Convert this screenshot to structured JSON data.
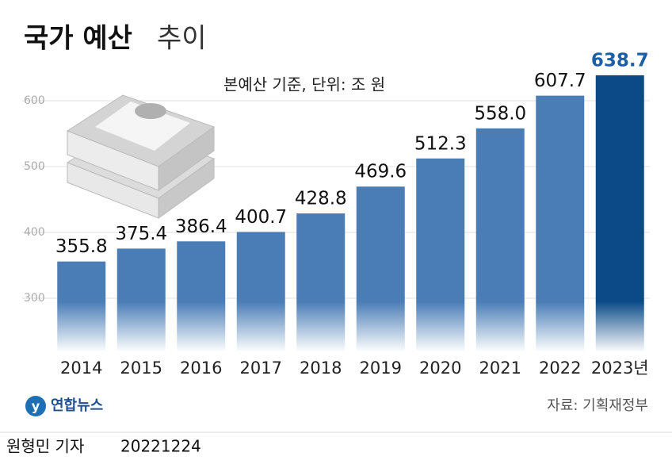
{
  "chart_data": {
    "type": "bar",
    "title": "국가 예산",
    "title_suffix": "추이",
    "subtitle": "본예산 기준, 단위: 조 원",
    "categories": [
      "2014",
      "2015",
      "2016",
      "2017",
      "2018",
      "2019",
      "2020",
      "2021",
      "2022",
      "2023년"
    ],
    "values": [
      355.8,
      375.4,
      386.4,
      400.7,
      428.8,
      469.6,
      512.3,
      558.0,
      607.7,
      638.7
    ],
    "value_labels": [
      "355.8",
      "375.4",
      "386.4",
      "400.7",
      "428.8",
      "469.6",
      "512.3",
      "558.0",
      "607.7",
      "638.7"
    ],
    "colors": [
      "#4a7db5",
      "#4a7db5",
      "#4a7db5",
      "#4a7db5",
      "#4a7db5",
      "#4a7db5",
      "#4a7db5",
      "#4a7db5",
      "#4a7db5",
      "#0b4a87"
    ],
    "label_colors": [
      "#111111",
      "#111111",
      "#111111",
      "#111111",
      "#111111",
      "#111111",
      "#111111",
      "#111111",
      "#111111",
      "#1a5fa8"
    ],
    "ylim": [
      220,
      650
    ],
    "yticks": [
      300,
      400,
      500,
      600
    ],
    "grid": true,
    "source": "자료: 기획재정부",
    "logo": "연합뉴스",
    "reporter": "원형민 기자",
    "date": "20221224"
  }
}
